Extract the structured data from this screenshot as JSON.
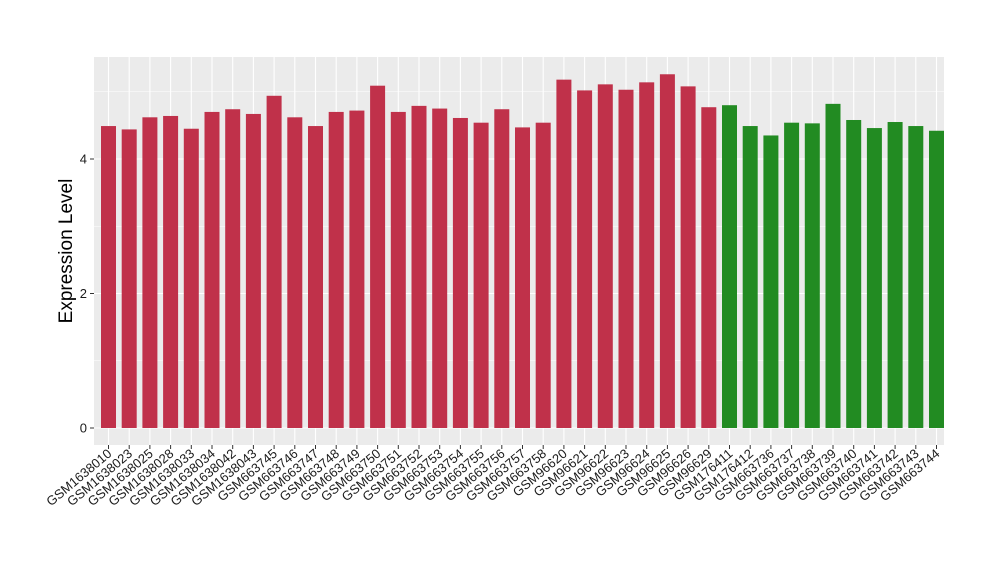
{
  "chart_data": {
    "type": "bar",
    "title": "",
    "xlabel": "",
    "ylabel": "Expression Level",
    "ylim": [
      0,
      5.5
    ],
    "yticks": [
      0,
      2,
      4
    ],
    "grid": true,
    "legend": "none",
    "categories": [
      "GSM1638010",
      "GSM1638023",
      "GSM1638025",
      "GSM1638028",
      "GSM1638033",
      "GSM1638034",
      "GSM1638042",
      "GSM1638043",
      "GSM663745",
      "GSM663746",
      "GSM663747",
      "GSM663748",
      "GSM663749",
      "GSM663750",
      "GSM663751",
      "GSM663752",
      "GSM663753",
      "GSM663754",
      "GSM663755",
      "GSM663756",
      "GSM663757",
      "GSM663758",
      "GSM96620",
      "GSM96621",
      "GSM96622",
      "GSM96623",
      "GSM96624",
      "GSM96625",
      "GSM96626",
      "GSM96629",
      "GSM176411",
      "GSM176412",
      "GSM663736",
      "GSM663737",
      "GSM663738",
      "GSM663739",
      "GSM663740",
      "GSM663741",
      "GSM663742",
      "GSM663743",
      "GSM663744"
    ],
    "values": [
      4.49,
      4.44,
      4.62,
      4.64,
      4.45,
      4.7,
      4.74,
      4.67,
      4.94,
      4.62,
      4.49,
      4.7,
      4.72,
      5.09,
      4.7,
      4.79,
      4.75,
      4.61,
      4.54,
      4.74,
      4.47,
      4.54,
      5.18,
      5.02,
      5.11,
      5.03,
      5.14,
      5.26,
      5.08,
      4.77,
      4.8,
      4.49,
      4.35,
      4.54,
      4.53,
      4.82,
      4.58,
      4.46,
      4.55,
      4.49,
      4.42
    ],
    "bar_colors": [
      "#c0314a",
      "#c0314a",
      "#c0314a",
      "#c0314a",
      "#c0314a",
      "#c0314a",
      "#c0314a",
      "#c0314a",
      "#c0314a",
      "#c0314a",
      "#c0314a",
      "#c0314a",
      "#c0314a",
      "#c0314a",
      "#c0314a",
      "#c0314a",
      "#c0314a",
      "#c0314a",
      "#c0314a",
      "#c0314a",
      "#c0314a",
      "#c0314a",
      "#c0314a",
      "#c0314a",
      "#c0314a",
      "#c0314a",
      "#c0314a",
      "#c0314a",
      "#c0314a",
      "#c0314a",
      "#228b22",
      "#228b22",
      "#228b22",
      "#228b22",
      "#228b22",
      "#228b22",
      "#228b22",
      "#228b22",
      "#228b22",
      "#228b22",
      "#228b22"
    ]
  }
}
